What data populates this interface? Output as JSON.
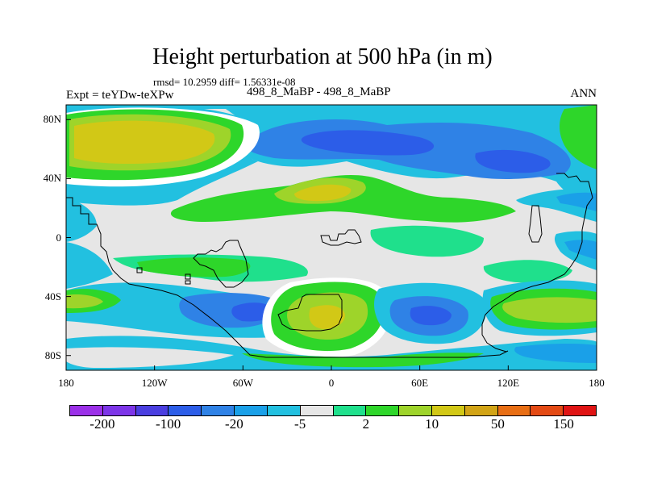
{
  "header": {
    "title": "Height perturbation at 500 hPa (in m)",
    "stats": "rmsd= 10.2959  diff= 1.56331e-08",
    "experiment": "Expt = teYDw-teXPw",
    "cases": "498_8_MaBP - 498_8_MaBP",
    "season": "ANN"
  },
  "axes": {
    "lat_ticks": [
      {
        "label": "80N",
        "value": 80
      },
      {
        "label": "40N",
        "value": 40
      },
      {
        "label": "0",
        "value": 0
      },
      {
        "label": "40S",
        "value": -40
      },
      {
        "label": "80S",
        "value": -80
      }
    ],
    "lon_ticks": [
      {
        "label": "180",
        "value": -180
      },
      {
        "label": "120W",
        "value": -120
      },
      {
        "label": "60W",
        "value": -60
      },
      {
        "label": "0",
        "value": 0
      },
      {
        "label": "60E",
        "value": 60
      },
      {
        "label": "120E",
        "value": 120
      },
      {
        "label": "180",
        "value": 180
      }
    ]
  },
  "colorbar": {
    "colors": [
      "#9b30e8",
      "#7d35e8",
      "#4a3ee0",
      "#2c5de8",
      "#2f82e6",
      "#1aa0e8",
      "#22c0e0",
      "#e6e6e6",
      "#1fe08c",
      "#2ed62a",
      "#9ed42a",
      "#d2c816",
      "#d2a416",
      "#e86e14",
      "#e44a14",
      "#e01414"
    ],
    "labels": [
      {
        "text": "-200",
        "index": 1
      },
      {
        "text": "-100",
        "index": 3
      },
      {
        "text": "-20",
        "index": 5
      },
      {
        "text": "-5",
        "index": 7
      },
      {
        "text": "2",
        "index": 9
      },
      {
        "text": "10",
        "index": 11
      },
      {
        "text": "50",
        "index": 13
      },
      {
        "text": "150",
        "index": 15
      }
    ]
  },
  "map_colors": {
    "neutral": "#e6e6e6",
    "cyan": "#22c0e0",
    "blue_light": "#1aa0e8",
    "blue": "#2f82e6",
    "blue_dark": "#2c5de8",
    "green_light": "#1fe08c",
    "green": "#2ed62a",
    "yellow_green": "#9ed42a",
    "yellow": "#d2c816",
    "white": "#ffffff",
    "coast": "#000000"
  }
}
